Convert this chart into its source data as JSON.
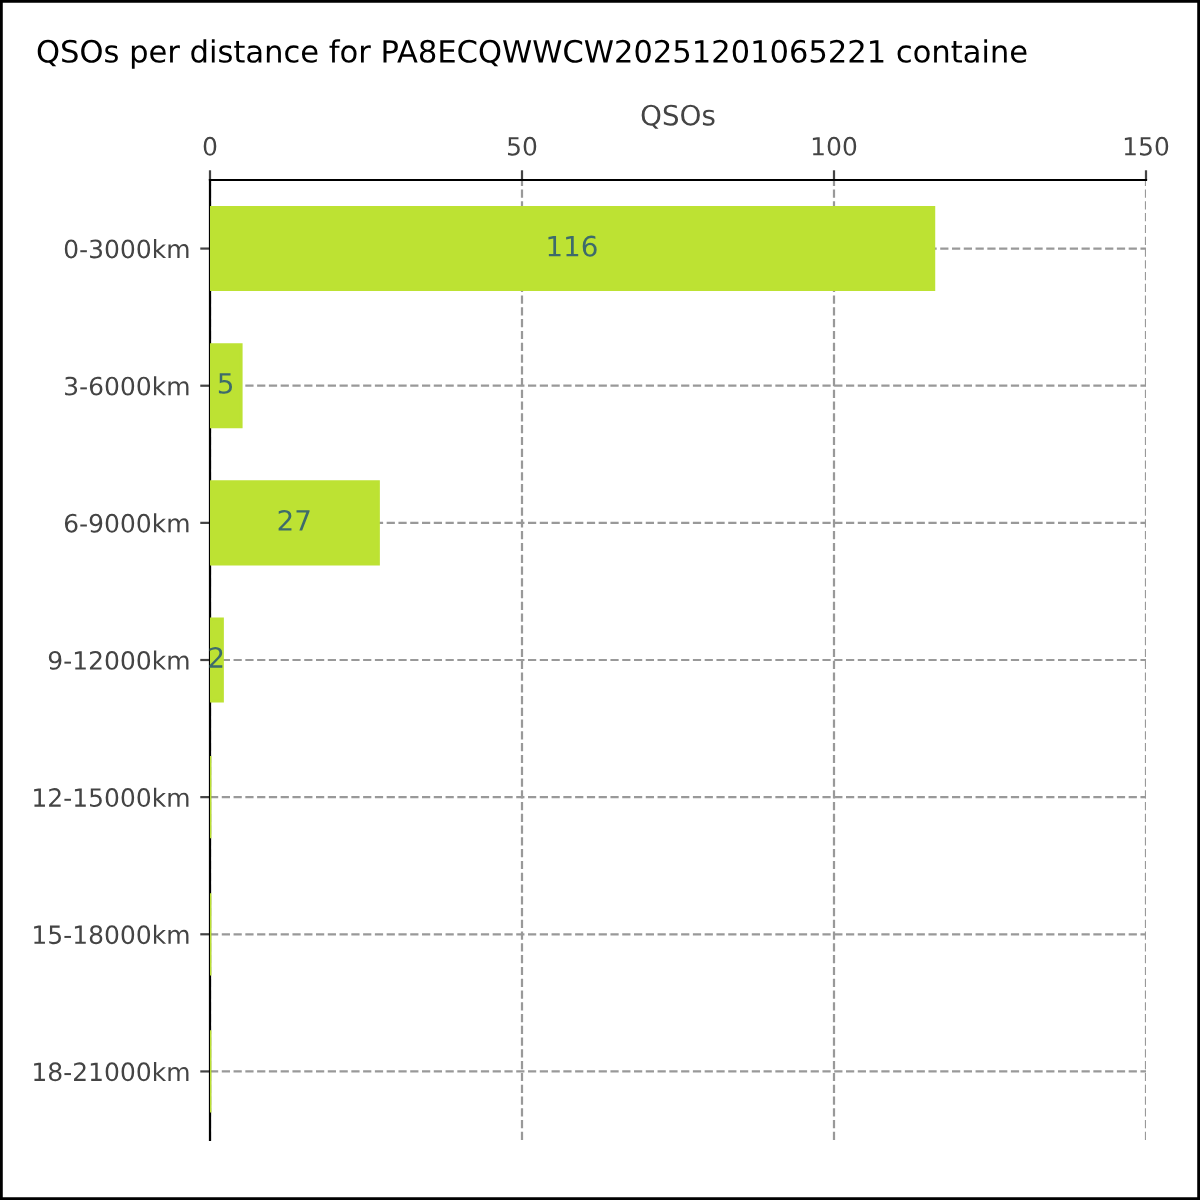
{
  "chart_data": {
    "type": "bar",
    "orientation": "horizontal",
    "title": "QSOs per distance for PA8ECQWWCW20251201065221 containe",
    "xlabel": "QSOs",
    "categories": [
      "0-3000km",
      "3-6000km",
      "6-9000km",
      "9-12000km",
      "12-15000km",
      "15-18000km",
      "18-21000km"
    ],
    "values": [
      116,
      5,
      27,
      2,
      0,
      0,
      0
    ],
    "value_labels": [
      "116",
      "5",
      "27",
      "2",
      null,
      null,
      null
    ],
    "color": "#bde233",
    "xlim": [
      0,
      150
    ],
    "xticks": [
      0,
      50,
      100,
      150
    ],
    "grid": true
  }
}
